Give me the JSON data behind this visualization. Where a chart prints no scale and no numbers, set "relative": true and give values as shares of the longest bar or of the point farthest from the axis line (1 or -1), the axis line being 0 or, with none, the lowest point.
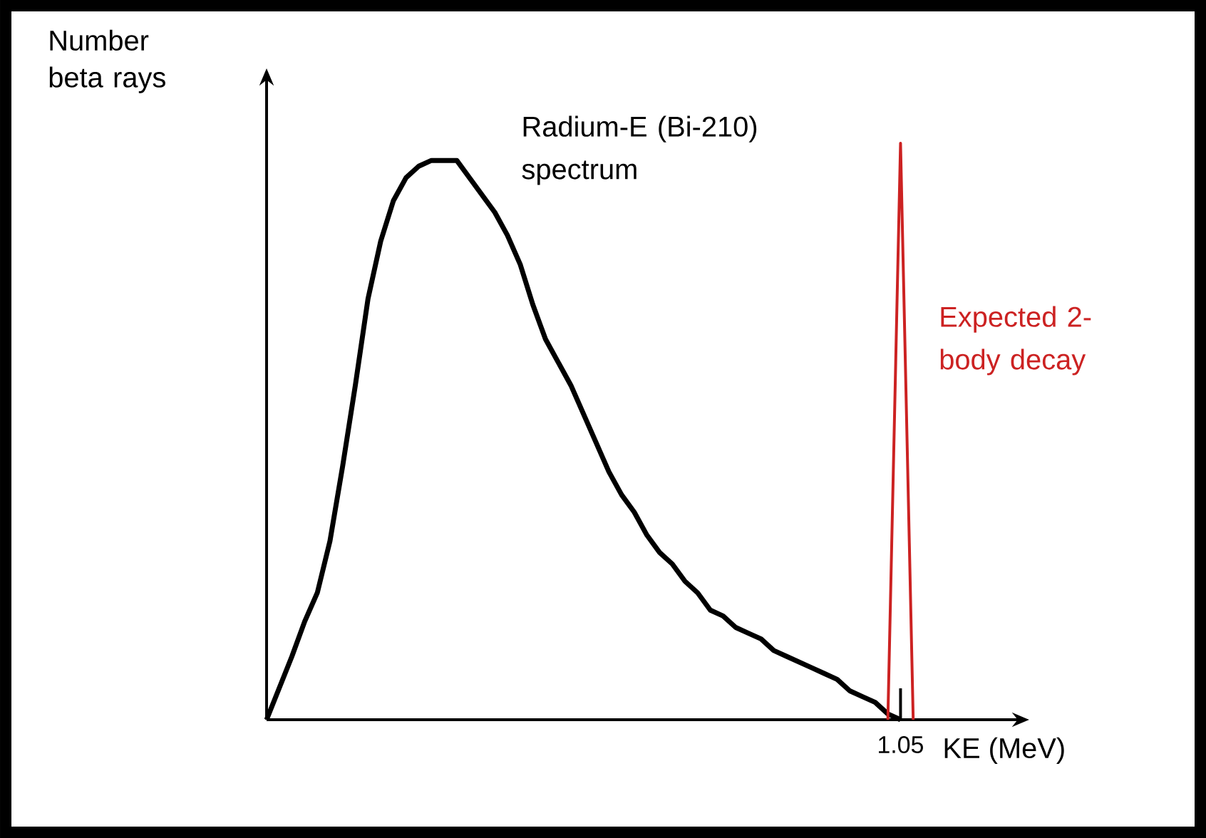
{
  "chart_data": {
    "type": "line",
    "relative": true,
    "xlabel": "KE (MeV)",
    "ylabel": "Number beta rays",
    "annotations": [
      "1.05"
    ],
    "categories": [
      null,
      null,
      null,
      null,
      null,
      null,
      null,
      null,
      null,
      null,
      null,
      null,
      null,
      null,
      null,
      null,
      null,
      null,
      null,
      null,
      null,
      null,
      null,
      null,
      null,
      null,
      null,
      null,
      null,
      null,
      null,
      null,
      null,
      null,
      null,
      null,
      null,
      null,
      null,
      null,
      null,
      null,
      null,
      null,
      null,
      null,
      null,
      null,
      null,
      null,
      null,
      null
    ],
    "series": [
      {
        "name": "Radium-E (Bi-210) spectrum",
        "color": "#000000",
        "values": [
          0,
          0.055,
          0.11,
          0.17,
          0.22,
          0.31,
          0.44,
          0.58,
          0.73,
          0.83,
          0.9,
          0.94,
          0.96,
          0.97,
          0.97,
          0.97,
          0.94,
          0.91,
          0.88,
          0.84,
          0.79,
          0.72,
          0.66,
          0.62,
          0.58,
          0.53,
          0.48,
          0.43,
          0.39,
          0.36,
          0.32,
          0.29,
          0.27,
          0.24,
          0.22,
          0.19,
          0.18,
          0.16,
          0.15,
          0.14,
          0.12,
          0.11,
          0.1,
          0.09,
          0.08,
          0.07,
          0.05,
          0.04,
          0.03,
          0.01,
          0,
          null
        ]
      },
      {
        "name": "Expected 2-body decay",
        "color": "#cc2222",
        "values": [
          null,
          null,
          null,
          null,
          null,
          null,
          null,
          null,
          null,
          null,
          null,
          null,
          null,
          null,
          null,
          null,
          null,
          null,
          null,
          null,
          null,
          null,
          null,
          null,
          null,
          null,
          null,
          null,
          null,
          null,
          null,
          null,
          null,
          null,
          null,
          null,
          null,
          null,
          null,
          null,
          null,
          null,
          null,
          null,
          null,
          null,
          null,
          null,
          null,
          0,
          1,
          0
        ]
      }
    ]
  }
}
